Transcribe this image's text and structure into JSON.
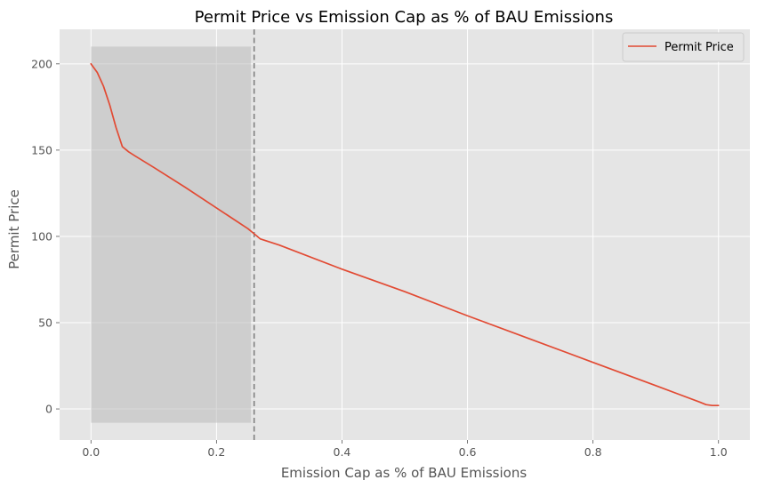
{
  "chart_data": {
    "type": "line",
    "title": "Permit Price vs Emission Cap as % of BAU Emissions",
    "xlabel": "Emission Cap as % of BAU Emissions",
    "ylabel": "Permit Price",
    "xlim": [
      -0.05,
      1.05
    ],
    "ylim": [
      -18,
      220
    ],
    "xticks": [
      0.0,
      0.2,
      0.4,
      0.6,
      0.8,
      1.0
    ],
    "xtick_labels": [
      "0.0",
      "0.2",
      "0.4",
      "0.6",
      "0.8",
      "1.0"
    ],
    "yticks": [
      0,
      50,
      100,
      150,
      200
    ],
    "ytick_labels": [
      "0",
      "50",
      "100",
      "150",
      "200"
    ],
    "grid": true,
    "legend_position": "top-right",
    "series": [
      {
        "name": "Permit Price",
        "color": "#e24a33",
        "x": [
          0.0,
          0.01,
          0.02,
          0.03,
          0.04,
          0.05,
          0.06,
          0.07,
          0.1,
          0.15,
          0.2,
          0.25,
          0.26,
          0.27,
          0.3,
          0.4,
          0.5,
          0.6,
          0.7,
          0.8,
          0.9,
          0.97,
          0.98,
          0.99,
          1.0
        ],
        "y": [
          200,
          195,
          187,
          176,
          163,
          152,
          149,
          146.7,
          140,
          128.5,
          116.5,
          104.5,
          101.5,
          98.5,
          95,
          81,
          68,
          54,
          40.5,
          27,
          13.5,
          4,
          2.5,
          2,
          2
        ]
      }
    ],
    "shaded_region": {
      "x": [
        0.0,
        0.255
      ],
      "y": [
        -8,
        210
      ],
      "color": "#bbbbbb"
    },
    "vertical_line": {
      "x": 0.26,
      "style": "dashed",
      "color": "#808080"
    },
    "colors": {
      "plot_background": "#e5e5e5",
      "grid": "#ffffff",
      "text": "#555555"
    }
  }
}
